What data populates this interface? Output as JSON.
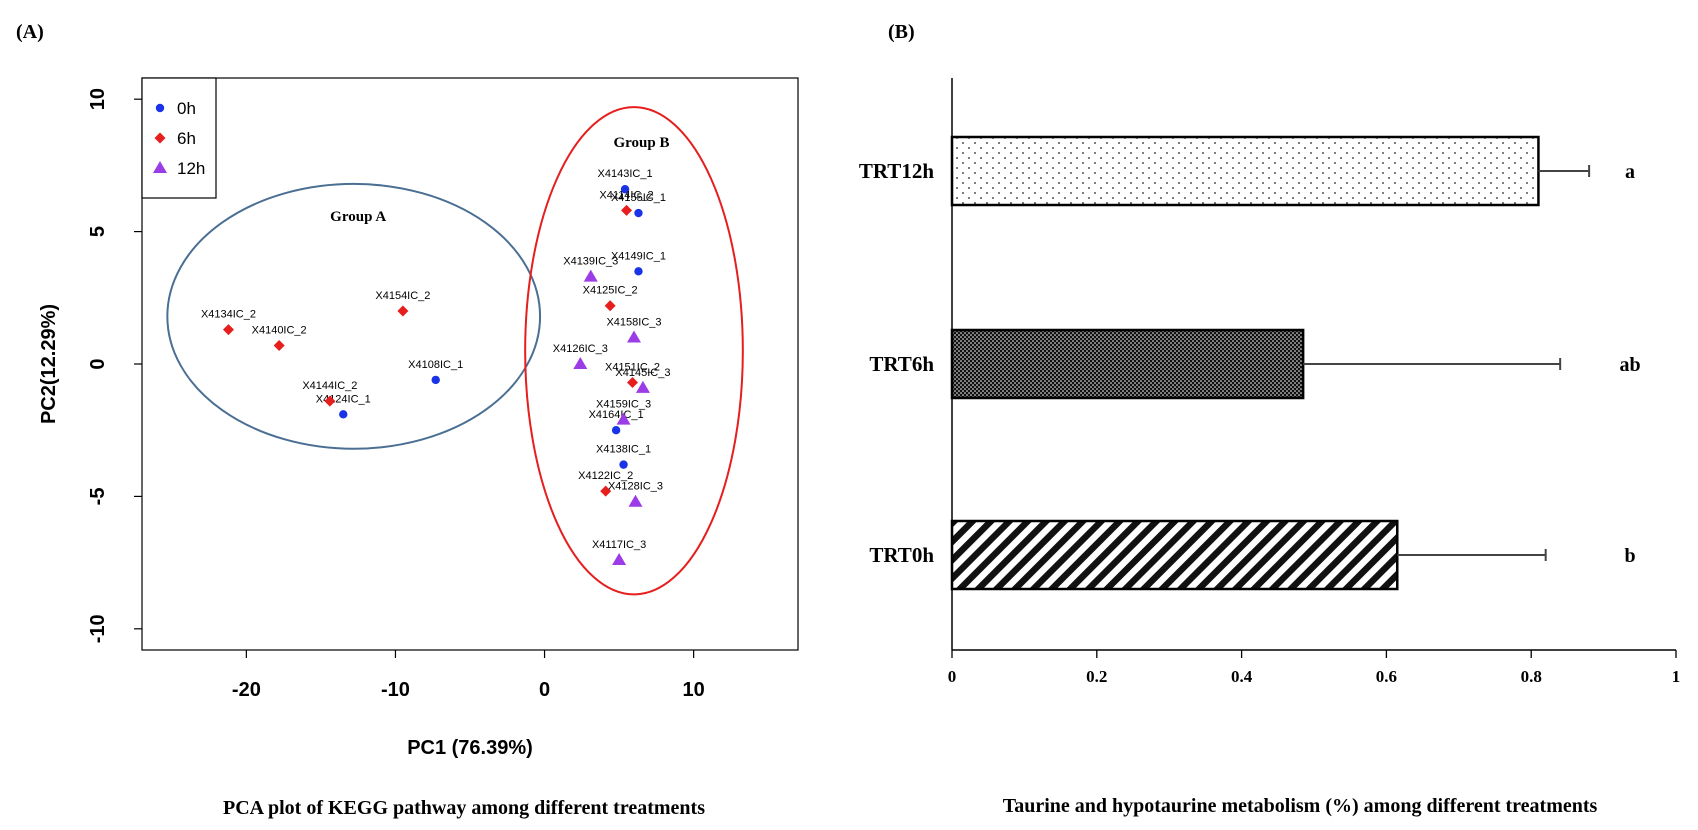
{
  "panel_a_label": "(A)",
  "panel_b_label": "(B)",
  "chart_data": [
    {
      "type": "scatter",
      "title": "PCA plot of KEGG pathway among different treatments",
      "xlabel": "PC1 (76.39%)",
      "ylabel": "PC2(12.29%)",
      "xlim": [
        -27,
        17
      ],
      "ylim": [
        -10.8,
        10.8
      ],
      "xticks": [
        -20,
        -10,
        0,
        10
      ],
      "xtick_labels": [
        "-20",
        "-10",
        "0",
        "10"
      ],
      "yticks": [
        -10,
        -5,
        0,
        5,
        10
      ],
      "ytick_labels": [
        "-10",
        "-5",
        "0",
        "5",
        "10"
      ],
      "grid": false,
      "legend_position": "top-left",
      "series": [
        {
          "name": "0h",
          "marker": "circle",
          "color": "#1a33e6",
          "points": [
            {
              "x": -7.3,
              "y": -0.6,
              "label": "X4108IC_1"
            },
            {
              "x": -13.5,
              "y": -1.9,
              "label": "X4124IC_1"
            },
            {
              "x": 6.3,
              "y": 5.7,
              "label": "X4155IC_1"
            },
            {
              "x": 5.4,
              "y": 6.6,
              "label": "X4143IC_1"
            },
            {
              "x": 6.3,
              "y": 3.5,
              "label": "X4149IC_1"
            },
            {
              "x": 4.8,
              "y": -2.5,
              "label": "X4164IC_1"
            },
            {
              "x": 5.3,
              "y": -3.8,
              "label": "X4138IC_1"
            }
          ]
        },
        {
          "name": "6h",
          "marker": "diamond",
          "color": "#e61e1e",
          "points": [
            {
              "x": -21.2,
              "y": 1.3,
              "label": "X4134IC_2"
            },
            {
              "x": -17.8,
              "y": 0.7,
              "label": "X4140IC_2"
            },
            {
              "x": -9.5,
              "y": 2.0,
              "label": "X4154IC_2"
            },
            {
              "x": -14.4,
              "y": -1.4,
              "label": "X4144IC_2"
            },
            {
              "x": 5.5,
              "y": 5.8,
              "label": "X4114IC_2"
            },
            {
              "x": 4.4,
              "y": 2.2,
              "label": "X4125IC_2"
            },
            {
              "x": 5.9,
              "y": -0.7,
              "label": "X4151IC_2"
            },
            {
              "x": 4.1,
              "y": -4.8,
              "label": "X4122IC_2"
            }
          ]
        },
        {
          "name": "12h",
          "marker": "triangle",
          "color": "#9b3ce6",
          "points": [
            {
              "x": 3.1,
              "y": 3.3,
              "label": "X4139IC_3"
            },
            {
              "x": 6.0,
              "y": 1.0,
              "label": "X4158IC_3"
            },
            {
              "x": 2.4,
              "y": 0.0,
              "label": "X4126IC_3"
            },
            {
              "x": 6.6,
              "y": -0.9,
              "label": "X4145IC_3"
            },
            {
              "x": 5.3,
              "y": -2.1,
              "label": "X4159IC_3"
            },
            {
              "x": 6.1,
              "y": -5.2,
              "label": "X4128IC_3"
            },
            {
              "x": 5.0,
              "y": -7.4,
              "label": "X4117IC_3"
            }
          ]
        }
      ],
      "annotations": [
        {
          "text": "Group A",
          "x": -12.5,
          "y": 5.4,
          "ellipse": {
            "cx": -12.8,
            "cy": 1.8,
            "rx": 12.5,
            "ry": 5.0
          },
          "color": "#4a6f93"
        },
        {
          "text": "Group B",
          "x": 6.5,
          "y": 8.2,
          "ellipse": {
            "cx": 6.0,
            "cy": 0.5,
            "rx": 7.3,
            "ry": 9.2
          },
          "color": "#e61e1e"
        }
      ]
    },
    {
      "type": "bar",
      "orientation": "horizontal",
      "title": "Taurine and hypotaurine metabolism (%) among different treatments",
      "xlabel": "",
      "ylabel": "",
      "xlim": [
        0,
        1
      ],
      "xticks": [
        0,
        0.2,
        0.4,
        0.6,
        0.8,
        1
      ],
      "xtick_labels": [
        "0",
        "0.2",
        "0.4",
        "0.6",
        "0.8",
        "1"
      ],
      "grid": false,
      "bars": [
        {
          "category": "TRT12h",
          "value": 0.81,
          "error": 0.07,
          "significance": "a",
          "pattern": "dots"
        },
        {
          "category": "TRT6h",
          "value": 0.485,
          "error": 0.355,
          "significance": "ab",
          "pattern": "dense"
        },
        {
          "category": "TRT0h",
          "value": 0.615,
          "error": 0.205,
          "significance": "b",
          "pattern": "stripes"
        }
      ]
    }
  ]
}
